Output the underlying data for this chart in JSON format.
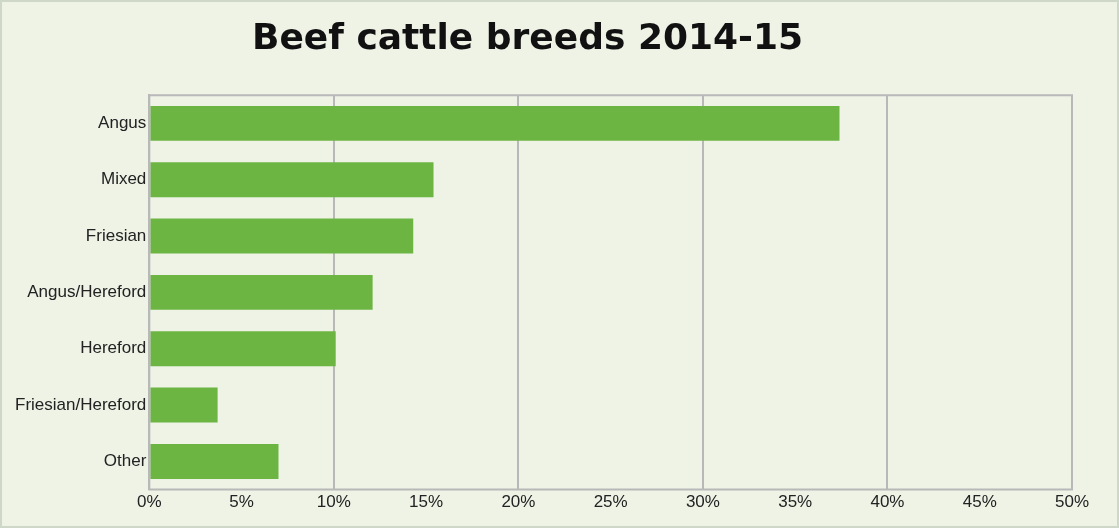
{
  "chart_data": {
    "type": "bar",
    "orientation": "horizontal",
    "title": "Beef cattle breeds 2014-15",
    "categories": [
      "Angus",
      "Mixed",
      "Friesian",
      "Angus/Hereford",
      "Hereford",
      "Friesian/Hereford",
      "Other"
    ],
    "values": [
      37.4,
      15.4,
      14.3,
      12.1,
      10.1,
      3.7,
      7.0
    ],
    "color": "#6cb543",
    "xlim": [
      0,
      50
    ],
    "xticks": [
      {
        "value": 0,
        "label": "0%"
      },
      {
        "value": 5,
        "label": "5%"
      },
      {
        "value": 10,
        "label": "10%"
      },
      {
        "value": 15,
        "label": "15%"
      },
      {
        "value": 20,
        "label": "20%"
      },
      {
        "value": 25,
        "label": "25%"
      },
      {
        "value": 30,
        "label": "30%"
      },
      {
        "value": 35,
        "label": "35%"
      },
      {
        "value": 40,
        "label": "40%"
      },
      {
        "value": 45,
        "label": "45%"
      },
      {
        "value": 50,
        "label": "50%"
      }
    ],
    "grid": "x",
    "legend": false
  }
}
